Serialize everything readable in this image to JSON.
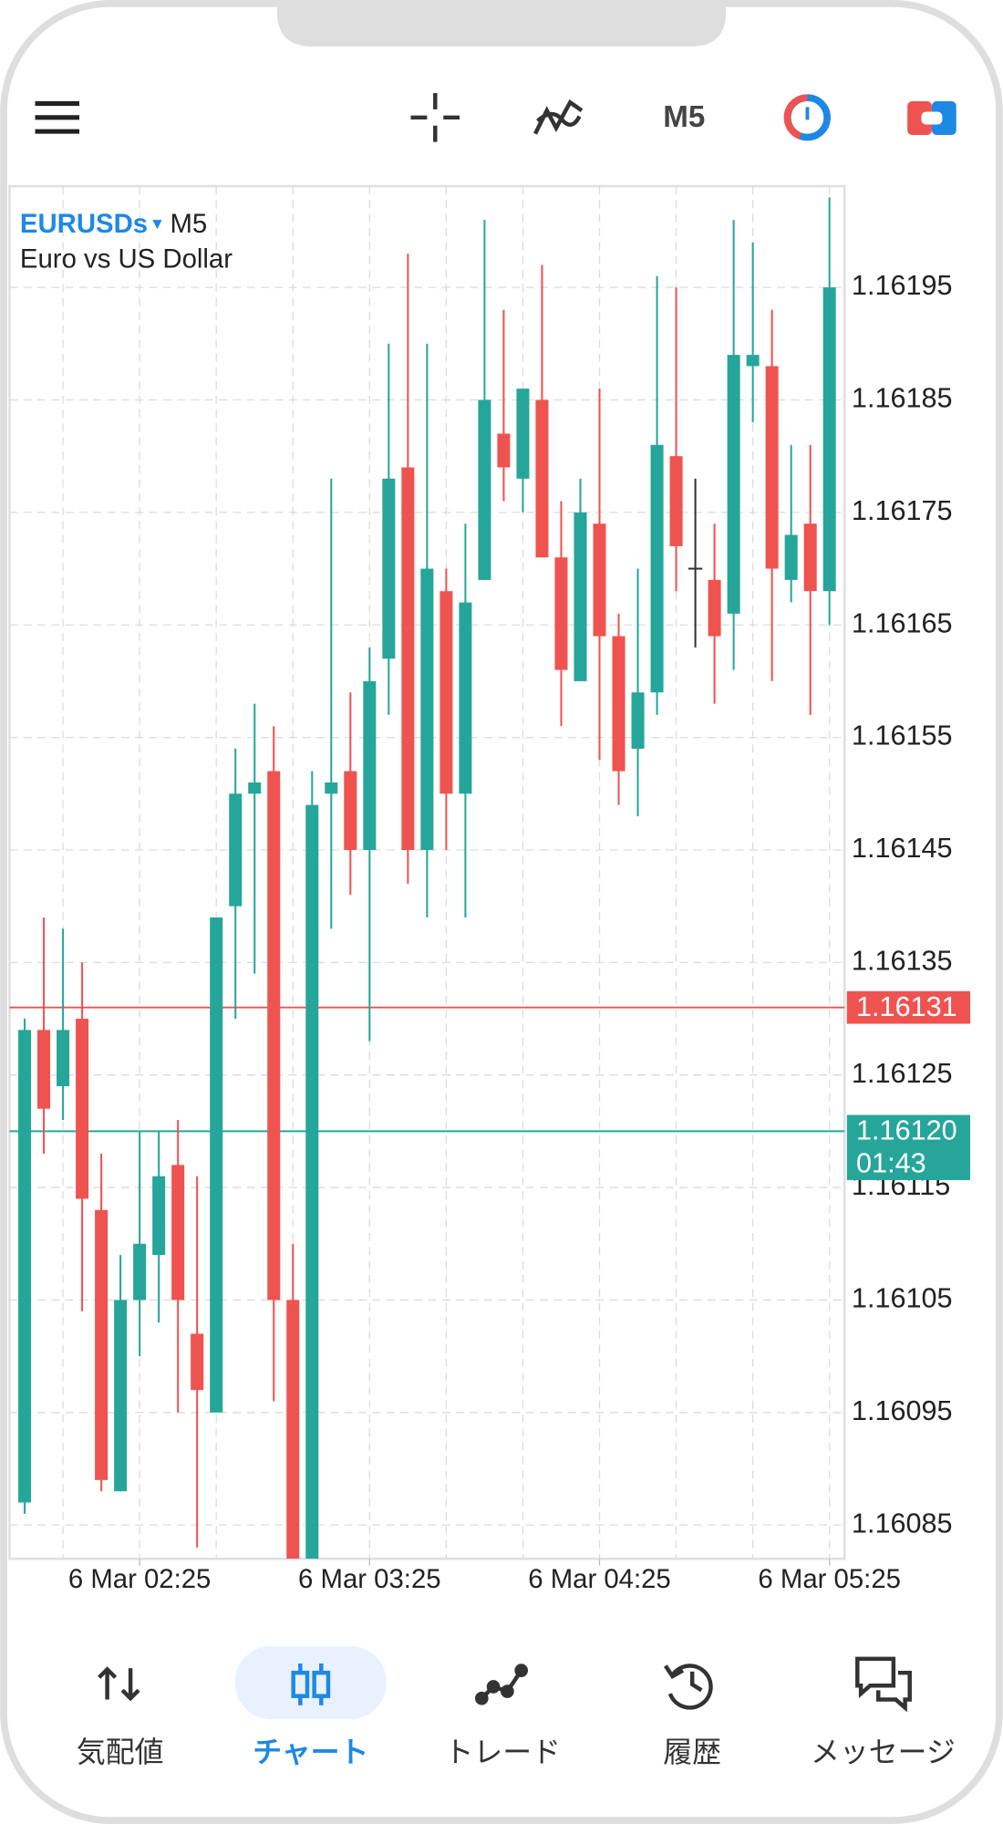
{
  "toolbar": {
    "timeframe": "M5"
  },
  "chart_data": {
    "type": "candlestick",
    "symbol": "EURUSDs",
    "timeframe": "M5",
    "description": "Euro vs US Dollar",
    "categories": [
      null,
      null,
      null,
      null,
      null,
      null,
      "6 Mar 02:25",
      null,
      null,
      null,
      null,
      null,
      null,
      null,
      null,
      null,
      null,
      null,
      "6 Mar 03:25",
      null,
      null,
      null,
      null,
      null,
      null,
      null,
      null,
      null,
      null,
      null,
      "6 Mar 04:25",
      null,
      null,
      null,
      null,
      null,
      null,
      null,
      null,
      null,
      null,
      null,
      "6 Mar 05:25"
    ],
    "open": [
      1.16087,
      1.16129,
      1.16124,
      1.1613,
      1.16113,
      1.16088,
      1.16105,
      1.16109,
      1.16117,
      1.16102,
      1.16095,
      1.1614,
      1.1615,
      1.16152,
      1.16105,
      1.16082,
      1.1615,
      1.16152,
      1.16145,
      1.16162,
      1.16179,
      1.16145,
      1.16168,
      1.1615,
      1.16169,
      1.16182,
      1.16178,
      1.16185,
      1.16171,
      1.1616,
      1.16174,
      1.16164,
      1.16154,
      1.16159,
      1.1618,
      1.1617,
      1.16169,
      1.16166,
      1.16188,
      1.16188,
      1.16169,
      1.16174,
      1.16168
    ],
    "high": [
      1.1613,
      1.16139,
      1.16138,
      1.16135,
      1.16118,
      1.16109,
      1.1612,
      1.1612,
      1.16121,
      1.16116,
      1.16139,
      1.16154,
      1.16158,
      1.16156,
      1.1611,
      1.16152,
      1.16178,
      1.16159,
      1.16163,
      1.1619,
      1.16198,
      1.1619,
      1.1617,
      1.16174,
      1.16201,
      1.16193,
      1.16186,
      1.16197,
      1.16176,
      1.16178,
      1.16186,
      1.16166,
      1.1617,
      1.16196,
      1.16195,
      1.16178,
      1.16174,
      1.16201,
      1.16199,
      1.16193,
      1.16181,
      1.16181,
      1.16203
    ],
    "low": [
      1.16086,
      1.16118,
      1.16121,
      1.16104,
      1.16088,
      1.16088,
      1.161,
      1.16103,
      1.16095,
      1.16083,
      1.16095,
      1.1613,
      1.16134,
      1.16096,
      1.16082,
      1.16082,
      1.16138,
      1.16141,
      1.16128,
      1.16157,
      1.16142,
      1.16139,
      1.16145,
      1.16139,
      1.16169,
      1.16176,
      1.16175,
      1.16171,
      1.16156,
      1.1616,
      1.16153,
      1.16149,
      1.16148,
      1.16157,
      1.16168,
      1.16163,
      1.16158,
      1.16161,
      1.16183,
      1.1616,
      1.16167,
      1.16157,
      1.16165
    ],
    "close": [
      1.16129,
      1.16122,
      1.16129,
      1.16114,
      1.16089,
      1.16105,
      1.1611,
      1.16116,
      1.16105,
      1.16097,
      1.16139,
      1.1615,
      1.16151,
      1.16105,
      1.16082,
      1.16149,
      1.16151,
      1.16145,
      1.1616,
      1.16178,
      1.16145,
      1.1617,
      1.1615,
      1.16167,
      1.16185,
      1.16179,
      1.16186,
      1.16171,
      1.16161,
      1.16175,
      1.16164,
      1.16152,
      1.16159,
      1.16181,
      1.16172,
      1.1617,
      1.16164,
      1.16189,
      1.16189,
      1.1617,
      1.16173,
      1.16168,
      1.16195
    ],
    "up_color": "#26a69a",
    "down_color": "#ef5350",
    "doji_color": "#333333",
    "ylim": [
      1.16082,
      1.16204
    ],
    "yticks": [
      1.16195,
      1.16185,
      1.16175,
      1.16165,
      1.16155,
      1.16145,
      1.16135,
      1.16125,
      1.16115,
      1.16105,
      1.16095,
      1.16085
    ],
    "grid": true,
    "ask": {
      "value": 1.16131,
      "color": "#ef5350"
    },
    "bid": {
      "value": 1.1612,
      "label": "1.16120",
      "timer": "01:43",
      "color": "#26a69a"
    }
  },
  "tabs": [
    {
      "label": "気配値"
    },
    {
      "label": "チャート",
      "active": true
    },
    {
      "label": "トレード"
    },
    {
      "label": "履歴"
    },
    {
      "label": "メッセージ"
    }
  ]
}
